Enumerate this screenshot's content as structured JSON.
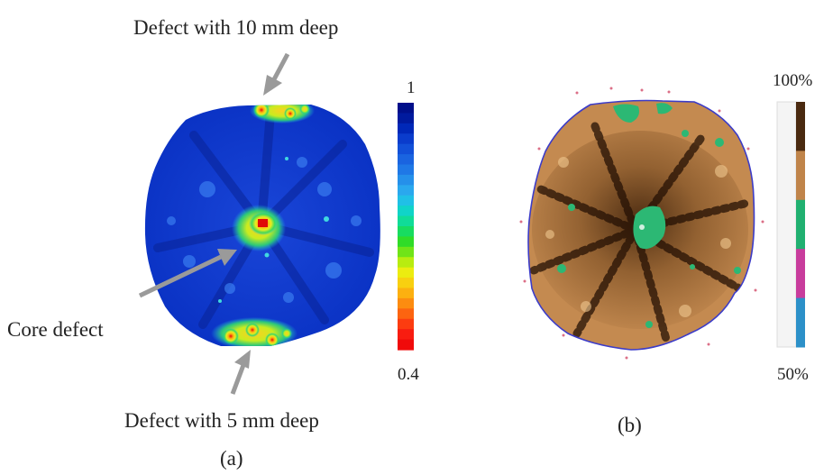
{
  "panel_a": {
    "caption": "(a)",
    "annotations": {
      "top": "Defect with 10 mm deep",
      "core": "Core defect",
      "bottom": "Defect with 5 mm deep"
    },
    "scale": {
      "max": "1",
      "min": "0.4"
    },
    "colormap": [
      "#000f8a",
      "#001a9e",
      "#0028b8",
      "#0a3ccc",
      "#1250d8",
      "#1a64e0",
      "#1f78e6",
      "#2590ea",
      "#2aa8ee",
      "#20c0e6",
      "#10d4c8",
      "#10dc98",
      "#18dc60",
      "#30dc28",
      "#70e418",
      "#b8ec10",
      "#ecec10",
      "#f8d010",
      "#fcb010",
      "#fc8c10",
      "#fc6410",
      "#fc3c10",
      "#f81c10",
      "#f00a0a"
    ]
  },
  "panel_b": {
    "caption": "(b)",
    "scale": {
      "max": "100%",
      "min": "50%"
    },
    "legend_colors": [
      "#4a2a10",
      "#c0844a",
      "#20b070",
      "#c83c9c",
      "#2c90c8"
    ]
  },
  "colors": {
    "arrow": "#9a9a9a",
    "outline": "#3c3cc8"
  }
}
